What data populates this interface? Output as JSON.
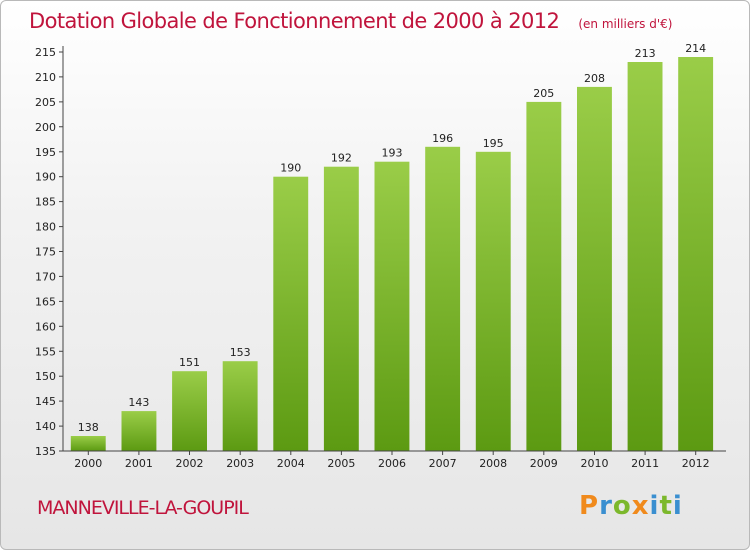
{
  "header": {
    "title": "Dotation Globale de Fonctionnement de 2000 à 2012",
    "subtitle": "(en milliers d'€)"
  },
  "footer": {
    "commune": "MANNEVILLE-LA-GOUPIL",
    "logo": "Proxiti"
  },
  "colors": {
    "accent": "#c0143c",
    "bar_top": "#9acd48",
    "bar_bottom": "#5c9a12",
    "logo_letters": [
      "#f08a1c",
      "#3a8fd0",
      "#7cb82c",
      "#f08a1c",
      "#3a8fd0",
      "#7cb82c",
      "#3a8fd0"
    ]
  },
  "chart_data": {
    "type": "bar",
    "categories": [
      "2000",
      "2001",
      "2002",
      "2003",
      "2004",
      "2005",
      "2006",
      "2007",
      "2008",
      "2009",
      "2010",
      "2011",
      "2012"
    ],
    "values": [
      138,
      143,
      151,
      153,
      190,
      192,
      193,
      196,
      195,
      205,
      208,
      213,
      214
    ],
    "ylim": [
      135,
      215
    ],
    "yticks": [
      135,
      140,
      145,
      150,
      155,
      160,
      165,
      170,
      175,
      180,
      185,
      190,
      195,
      200,
      205,
      210,
      215
    ],
    "grid": false,
    "data_labels": true
  }
}
